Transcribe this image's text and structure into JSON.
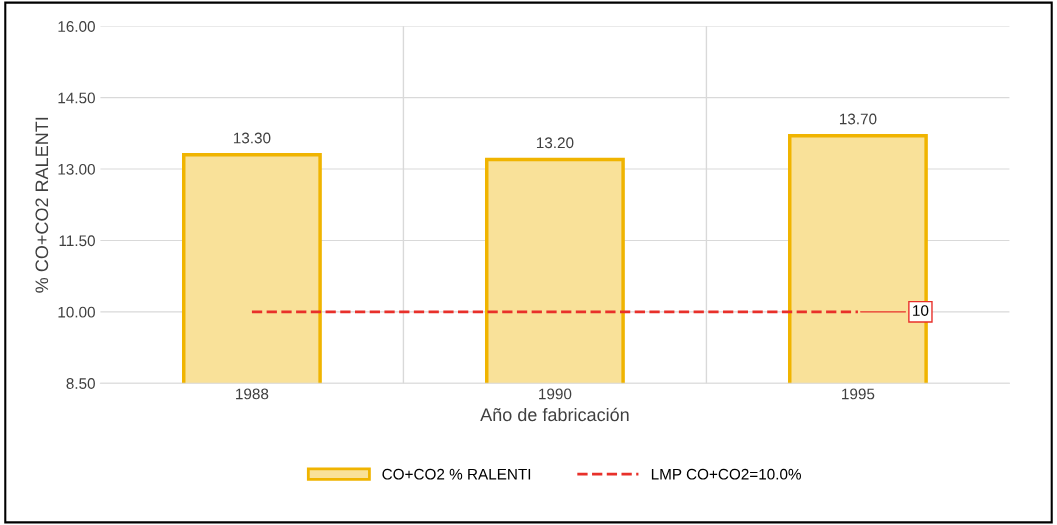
{
  "chart_data": {
    "type": "bar",
    "xlabel": "Año de fabricación",
    "ylabel": "% CO+CO2 RALENTI",
    "categories": [
      "1988",
      "1990",
      "1995"
    ],
    "series": [
      {
        "name": "CO+CO2 % RALENTI",
        "color": "#f0b400",
        "values": [
          13.3,
          13.2,
          13.7
        ],
        "value_labels": [
          "13.30",
          "13.20",
          "13.70"
        ]
      },
      {
        "name": "LMP CO+CO2=10.0%",
        "type": "line",
        "color": "#e8302a",
        "line_style": "dashed",
        "values": [
          10,
          10,
          10
        ],
        "value_labels": [
          null,
          null,
          "10"
        ]
      }
    ],
    "ylim": [
      8.5,
      16
    ],
    "yticks": [
      {
        "value": 8.5,
        "label": "8.50"
      },
      {
        "value": 10,
        "label": "10.00"
      },
      {
        "value": 11.5,
        "label": "11.50"
      },
      {
        "value": 13,
        "label": "13.00"
      },
      {
        "value": 14.5,
        "label": "14.50"
      },
      {
        "value": 16,
        "label": "16.00"
      }
    ],
    "grid": true,
    "legend": "bottom",
    "marker": "none"
  }
}
